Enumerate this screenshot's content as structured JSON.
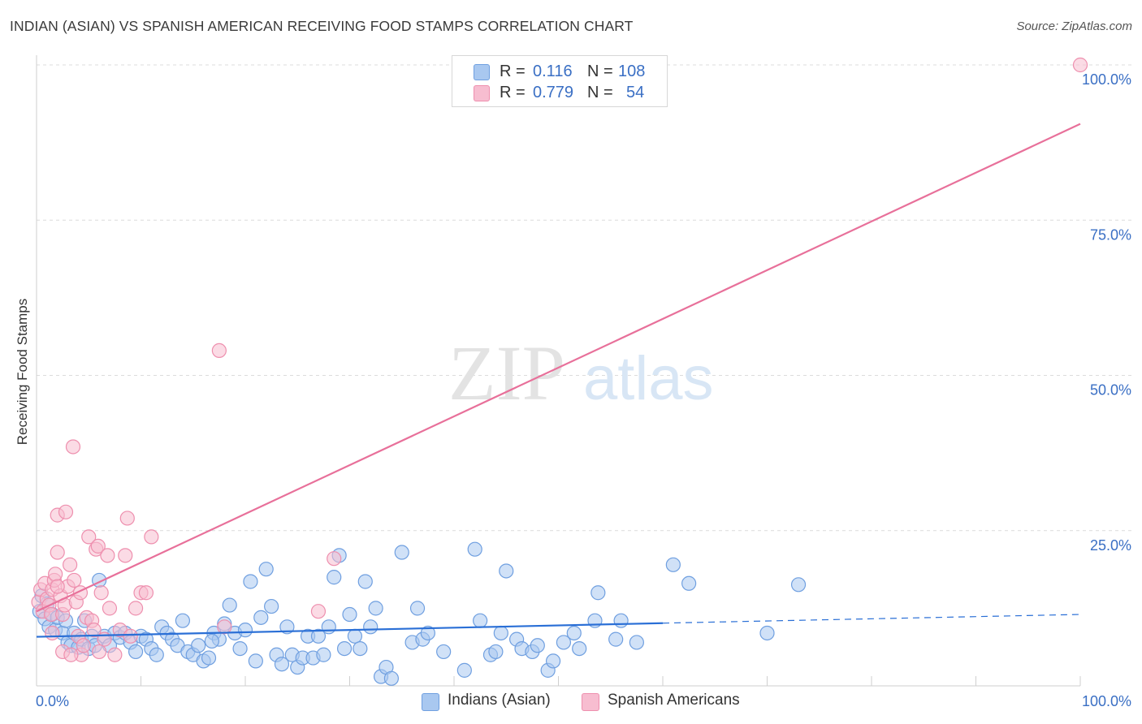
{
  "title": "INDIAN (ASIAN) VS SPANISH AMERICAN RECEIVING FOOD STAMPS CORRELATION CHART",
  "source": "Source: ZipAtlas.com",
  "watermark": {
    "zip": "ZIP",
    "atlas": "atlas"
  },
  "legend": {
    "rows": [
      {
        "r_label": "R =",
        "r_value": "0.116",
        "n_label": "N =",
        "n_value": "108",
        "color": "#a9c8f0",
        "border": "#6f9fe0"
      },
      {
        "r_label": "R =",
        "r_value": "0.779",
        "n_label": "N =",
        "n_value": "54",
        "color": "#f7bdd0",
        "border": "#ee8fae"
      }
    ]
  },
  "bottom_legend": {
    "items": [
      {
        "label": "Indians (Asian)",
        "color": "#a9c8f0",
        "border": "#6f9fe0"
      },
      {
        "label": "Spanish Americans",
        "color": "#f7bdd0",
        "border": "#ee8fae"
      }
    ]
  },
  "chart_data": {
    "type": "scatter",
    "title": "INDIAN (ASIAN) VS SPANISH AMERICAN RECEIVING FOOD STAMPS CORRELATION CHART",
    "xlabel": "",
    "ylabel": "Receiving Food Stamps",
    "xlim": [
      0,
      100
    ],
    "ylim": [
      0,
      100
    ],
    "x_tick_labels": [
      "0.0%",
      "100.0%"
    ],
    "y_ticks": [
      25,
      50,
      75,
      100
    ],
    "y_tick_labels": [
      "25.0%",
      "50.0%",
      "75.0%",
      "100.0%"
    ],
    "grid": true,
    "series": [
      {
        "name": "Indians (Asian)",
        "color": "#6f9fe0",
        "fill": "#a9c8f0",
        "line_color": "#2a6fd6",
        "trend": {
          "x0": 0,
          "y0": 7.9,
          "x1": 60,
          "y1": 10.1,
          "dashed_to_x": 100,
          "dashed_to_y": 11.5
        },
        "points": [
          [
            0.3,
            12.0
          ],
          [
            0.5,
            14.5
          ],
          [
            0.8,
            10.8
          ],
          [
            1.0,
            13.2
          ],
          [
            1.2,
            9.5
          ],
          [
            1.5,
            11.5
          ],
          [
            1.8,
            9.0
          ],
          [
            2.0,
            11.0
          ],
          [
            2.5,
            8.5
          ],
          [
            2.8,
            10.5
          ],
          [
            3.0,
            7.0
          ],
          [
            3.3,
            6.5
          ],
          [
            3.6,
            8.5
          ],
          [
            4.0,
            6.2
          ],
          [
            4.3,
            7.5
          ],
          [
            4.6,
            10.5
          ],
          [
            5.0,
            6.0
          ],
          [
            5.3,
            8.0
          ],
          [
            5.6,
            6.5
          ],
          [
            6.0,
            17.0
          ],
          [
            6.5,
            8.0
          ],
          [
            7.0,
            6.5
          ],
          [
            7.5,
            8.5
          ],
          [
            8.0,
            7.8
          ],
          [
            8.5,
            8.5
          ],
          [
            9.0,
            7.0
          ],
          [
            9.5,
            5.5
          ],
          [
            10.0,
            8.0
          ],
          [
            10.5,
            7.5
          ],
          [
            11.0,
            6.0
          ],
          [
            11.5,
            5.0
          ],
          [
            12.0,
            9.5
          ],
          [
            12.5,
            8.5
          ],
          [
            13.0,
            7.5
          ],
          [
            13.5,
            6.5
          ],
          [
            14.0,
            10.5
          ],
          [
            14.5,
            5.5
          ],
          [
            15.0,
            5.0
          ],
          [
            15.5,
            6.5
          ],
          [
            16.0,
            4.0
          ],
          [
            16.5,
            4.5
          ],
          [
            17.0,
            8.5
          ],
          [
            17.5,
            7.5
          ],
          [
            18.0,
            10.0
          ],
          [
            18.5,
            13.0
          ],
          [
            19.0,
            8.5
          ],
          [
            19.5,
            6.0
          ],
          [
            20.0,
            9.0
          ],
          [
            20.5,
            16.8
          ],
          [
            21.0,
            4.0
          ],
          [
            21.5,
            11.0
          ],
          [
            22.0,
            18.8
          ],
          [
            22.5,
            12.8
          ],
          [
            23.0,
            5.0
          ],
          [
            23.5,
            3.5
          ],
          [
            24.0,
            9.5
          ],
          [
            24.5,
            5.0
          ],
          [
            25.0,
            3.0
          ],
          [
            25.5,
            4.5
          ],
          [
            26.0,
            8.0
          ],
          [
            26.5,
            4.5
          ],
          [
            27.0,
            8.0
          ],
          [
            27.5,
            5.0
          ],
          [
            28.0,
            9.5
          ],
          [
            28.5,
            17.5
          ],
          [
            29.0,
            21.0
          ],
          [
            29.5,
            6.0
          ],
          [
            30.0,
            11.5
          ],
          [
            30.5,
            8.0
          ],
          [
            31.0,
            6.0
          ],
          [
            31.5,
            16.8
          ],
          [
            32.0,
            9.5
          ],
          [
            32.5,
            12.5
          ],
          [
            33.0,
            1.5
          ],
          [
            33.5,
            3.0
          ],
          [
            34.0,
            1.2
          ],
          [
            35.0,
            21.5
          ],
          [
            36.0,
            7.0
          ],
          [
            36.5,
            12.5
          ],
          [
            37.0,
            7.5
          ],
          [
            37.5,
            8.5
          ],
          [
            39.0,
            5.5
          ],
          [
            42.0,
            22.0
          ],
          [
            41.0,
            2.5
          ],
          [
            42.5,
            10.5
          ],
          [
            43.5,
            5.0
          ],
          [
            44.0,
            5.5
          ],
          [
            44.5,
            8.5
          ],
          [
            45.0,
            18.5
          ],
          [
            46.0,
            7.5
          ],
          [
            46.5,
            6.0
          ],
          [
            47.5,
            5.5
          ],
          [
            48.0,
            6.5
          ],
          [
            49.0,
            2.5
          ],
          [
            49.5,
            4.0
          ],
          [
            50.5,
            7.0
          ],
          [
            51.5,
            8.5
          ],
          [
            52.0,
            6.0
          ],
          [
            53.5,
            10.5
          ],
          [
            53.8,
            15.0
          ],
          [
            55.5,
            7.5
          ],
          [
            56.0,
            10.5
          ],
          [
            57.5,
            7.0
          ],
          [
            61.0,
            19.5
          ],
          [
            62.5,
            16.5
          ],
          [
            70.0,
            8.5
          ],
          [
            73.0,
            16.3
          ],
          [
            16.8,
            7.2
          ]
        ]
      },
      {
        "name": "Spanish Americans",
        "color": "#ee8fae",
        "fill": "#f7bdd0",
        "line_color": "#e8709a",
        "trend": {
          "x0": 0,
          "y0": 12.0,
          "x1": 100,
          "y1": 90.5
        },
        "points": [
          [
            0.2,
            13.5
          ],
          [
            0.4,
            15.5
          ],
          [
            0.6,
            12.0
          ],
          [
            0.8,
            16.5
          ],
          [
            1.0,
            14.0
          ],
          [
            1.2,
            13.0
          ],
          [
            1.4,
            11.5
          ],
          [
            1.5,
            15.5
          ],
          [
            1.7,
            17.0
          ],
          [
            1.8,
            18.0
          ],
          [
            2.0,
            21.5
          ],
          [
            2.0,
            27.5
          ],
          [
            2.3,
            14.5
          ],
          [
            2.5,
            11.5
          ],
          [
            2.7,
            13.0
          ],
          [
            2.8,
            28.0
          ],
          [
            3.0,
            16.0
          ],
          [
            3.2,
            19.5
          ],
          [
            3.5,
            38.5
          ],
          [
            3.6,
            17.0
          ],
          [
            3.8,
            13.5
          ],
          [
            4.0,
            8.0
          ],
          [
            4.2,
            15.0
          ],
          [
            4.3,
            5.0
          ],
          [
            4.5,
            6.5
          ],
          [
            4.8,
            11.0
          ],
          [
            5.0,
            24.0
          ],
          [
            5.3,
            10.5
          ],
          [
            5.5,
            9.0
          ],
          [
            5.7,
            22.0
          ],
          [
            5.9,
            22.5
          ],
          [
            6.2,
            15.0
          ],
          [
            6.5,
            7.5
          ],
          [
            6.8,
            21.0
          ],
          [
            7.0,
            12.5
          ],
          [
            7.5,
            5.0
          ],
          [
            8.0,
            9.0
          ],
          [
            8.5,
            21.0
          ],
          [
            8.7,
            27.0
          ],
          [
            9.0,
            8.0
          ],
          [
            9.5,
            12.5
          ],
          [
            10.0,
            15.0
          ],
          [
            11.0,
            24.0
          ],
          [
            17.5,
            54.0
          ],
          [
            27.0,
            12.0
          ],
          [
            28.5,
            20.5
          ],
          [
            1.5,
            8.5
          ],
          [
            2.5,
            5.5
          ],
          [
            3.3,
            5.0
          ],
          [
            6.0,
            5.5
          ],
          [
            10.5,
            15.0
          ],
          [
            18.0,
            9.5
          ],
          [
            2.0,
            16.0
          ],
          [
            100.0,
            100.0
          ]
        ]
      }
    ]
  }
}
